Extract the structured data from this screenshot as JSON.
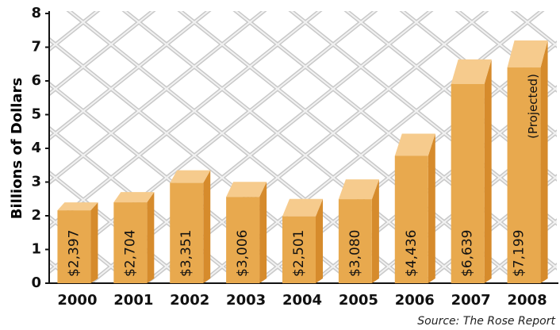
{
  "chart_data": {
    "type": "bar3d",
    "ylabel": "Billions of Dollars",
    "categories": [
      "2000",
      "2001",
      "2002",
      "2003",
      "2004",
      "2005",
      "2006",
      "2007",
      "2008"
    ],
    "values": [
      2.397,
      2.704,
      3.351,
      3.006,
      2.501,
      3.08,
      4.436,
      6.639,
      7.199
    ],
    "value_labels": [
      "$2,397",
      "$2,704",
      "$3,351",
      "$3,006",
      "$2,501",
      "$3,080",
      "$4,436",
      "$6,639",
      "$7,199"
    ],
    "annotation": "(Projected)",
    "source": "Source: The Rose Report",
    "color": "#e8a94e",
    "ylim": [
      0,
      8
    ],
    "yticks": [
      0,
      1,
      2,
      3,
      4,
      5,
      6,
      7,
      8
    ]
  }
}
